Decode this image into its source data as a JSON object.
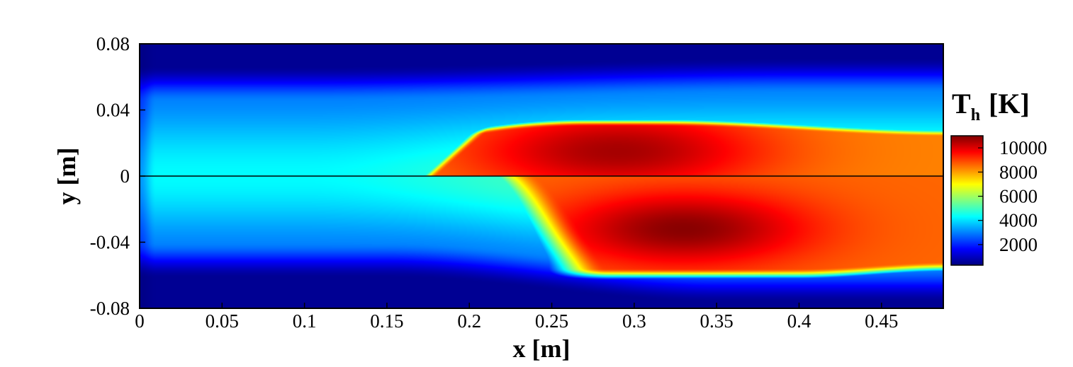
{
  "chart_data": {
    "type": "heatmap",
    "title": "",
    "xlabel": "x [m]",
    "ylabel": "y [m]",
    "xlim": [
      0,
      0.4875
    ],
    "ylim": [
      -0.08,
      0.08
    ],
    "x_ticks": [
      "0",
      "0.05",
      "0.1",
      "0.15",
      "0.2",
      "0.25",
      "0.3",
      "0.35",
      "0.4",
      "0.45"
    ],
    "x_tick_values": [
      0,
      0.05,
      0.1,
      0.15,
      0.2,
      0.25,
      0.3,
      0.35,
      0.4,
      0.45
    ],
    "y_ticks": [
      "0.08",
      "0.04",
      "0",
      "-0.04",
      "-0.08"
    ],
    "y_tick_values": [
      0.08,
      0.04,
      0,
      -0.04,
      -0.08
    ],
    "colorbar": {
      "title": "T",
      "title_subscript": "h",
      "title_unit": "[K]",
      "range": [
        300,
        11000
      ],
      "tick_labels": [
        "10000",
        "8000",
        "6000",
        "4000",
        "2000"
      ],
      "tick_values": [
        10000,
        8000,
        6000,
        4000,
        2000
      ],
      "colormap": "jet"
    },
    "centerline_y": 0,
    "field_description_points": {
      "peak_upper_half": {
        "x": 0.29,
        "y": 0.018,
        "T": 10500
      },
      "peak_lower_half": {
        "x": 0.33,
        "y": -0.032,
        "T": 10800
      },
      "core_inlet_region": {
        "x": 0.05,
        "y": 0.0,
        "T": 4400
      },
      "wall_region": {
        "x": 0.25,
        "y": 0.075,
        "T": 600
      }
    }
  }
}
